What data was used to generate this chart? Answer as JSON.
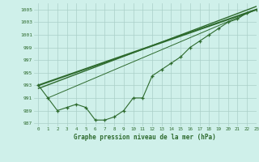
{
  "title": "Graphe pression niveau de la mer (hPa)",
  "background_color": "#cff0ea",
  "grid_color": "#aacfc8",
  "line_color": "#2d6a2d",
  "text_color": "#2d6a2d",
  "xlim": [
    -0.5,
    23
  ],
  "ylim": [
    986.5,
    1006
  ],
  "yticks": [
    987,
    989,
    991,
    993,
    995,
    997,
    999,
    1001,
    1003,
    1005
  ],
  "xticks": [
    0,
    1,
    2,
    3,
    4,
    5,
    6,
    7,
    8,
    9,
    10,
    11,
    12,
    13,
    14,
    15,
    16,
    17,
    18,
    19,
    20,
    21,
    22,
    23
  ],
  "hours": [
    0,
    1,
    2,
    3,
    4,
    5,
    6,
    7,
    8,
    9,
    10,
    11,
    12,
    13,
    14,
    15,
    16,
    17,
    18,
    19,
    20,
    21,
    22,
    23
  ],
  "actual": [
    993,
    991,
    989,
    989.5,
    990,
    989.5,
    987.5,
    987.5,
    988,
    989,
    991,
    991,
    994.5,
    995.5,
    996.5,
    997.5,
    999,
    1000,
    1001,
    1002,
    1003,
    1003.5,
    1004.5,
    1005
  ]
}
